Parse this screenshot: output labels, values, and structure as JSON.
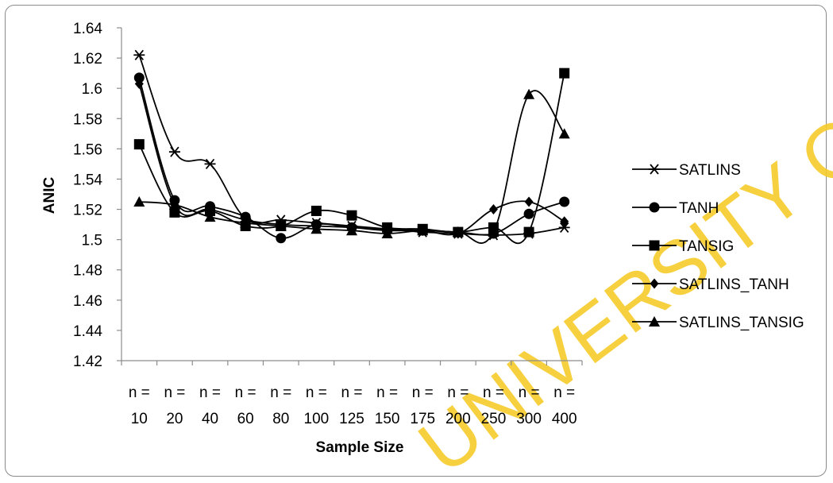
{
  "watermark": "UNIVERSITY OF IBADAN LIBRARY",
  "chart_data": {
    "type": "line",
    "title": "",
    "xlabel": "Sample Size",
    "ylabel": "ANIC",
    "ylim": [
      1.42,
      1.64
    ],
    "ytick_step": 0.02,
    "yticks": [
      "1.42",
      "1.44",
      "1.46",
      "1.48",
      "1.5",
      "1.52",
      "1.54",
      "1.56",
      "1.58",
      "1.6",
      "1.62",
      "1.64"
    ],
    "categories": [
      "n = 10",
      "n = 20",
      "n = 40",
      "n = 60",
      "n = 80",
      "n = 100",
      "n = 125",
      "n = 150",
      "n = 175",
      "n = 200",
      "n = 250",
      "n = 300",
      "n = 400"
    ],
    "category_prefix": "n =",
    "category_values": [
      "10",
      "20",
      "40",
      "60",
      "80",
      "100",
      "125",
      "150",
      "175",
      "200",
      "250",
      "300",
      "400"
    ],
    "grid": false,
    "legend_position": "right",
    "series": [
      {
        "name": "SATLINS",
        "marker": "star",
        "color": "#000000",
        "values": [
          1.622,
          1.558,
          1.55,
          1.514,
          1.513,
          1.511,
          1.509,
          1.507,
          1.505,
          1.504,
          1.503,
          1.504,
          1.508
        ]
      },
      {
        "name": "TANH",
        "marker": "circle",
        "color": "#000000",
        "values": [
          1.607,
          1.526,
          1.522,
          1.515,
          1.501,
          1.51,
          1.508,
          1.507,
          1.506,
          1.505,
          1.504,
          1.517,
          1.525
        ]
      },
      {
        "name": "TANSIG",
        "marker": "square",
        "color": "#000000",
        "values": [
          1.563,
          1.518,
          1.519,
          1.509,
          1.509,
          1.519,
          1.516,
          1.508,
          1.507,
          1.505,
          1.508,
          1.505,
          1.61
        ]
      },
      {
        "name": "SATLINS_TANH",
        "marker": "diamond",
        "color": "#000000",
        "values": [
          1.603,
          1.523,
          1.52,
          1.513,
          1.51,
          1.509,
          1.508,
          1.506,
          1.506,
          1.504,
          1.52,
          1.525,
          1.512
        ]
      },
      {
        "name": "SATLINS_TANSIG",
        "marker": "triangle",
        "color": "#000000",
        "values": [
          1.525,
          1.523,
          1.515,
          1.511,
          1.509,
          1.507,
          1.506,
          1.504,
          1.506,
          1.505,
          1.505,
          1.596,
          1.57
        ]
      }
    ]
  }
}
